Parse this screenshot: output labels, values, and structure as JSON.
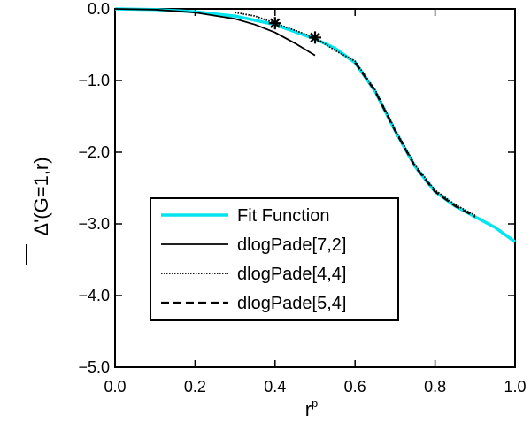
{
  "chart_data": {
    "type": "line",
    "xlabel": "r",
    "xlabel_sup": "p",
    "ylabel": "Δ'(G=1,r)",
    "xlim": [
      0.0,
      1.0
    ],
    "ylim": [
      -5.0,
      0.0
    ],
    "xticks": [
      "0.0",
      "0.2",
      "0.4",
      "0.6",
      "0.8",
      "1.0"
    ],
    "yticks": [
      "0.0",
      "−1.0",
      "−2.0",
      "−3.0",
      "−4.0",
      "−5.0"
    ],
    "legend_position": "lower-left",
    "series": [
      {
        "name": "Fit Function",
        "color": "#00e5ee",
        "style": "solid-thick",
        "points": [
          [
            0.0,
            0.0
          ],
          [
            0.1,
            -0.01
          ],
          [
            0.2,
            -0.04
          ],
          [
            0.3,
            -0.1
          ],
          [
            0.4,
            -0.22
          ],
          [
            0.5,
            -0.42
          ],
          [
            0.55,
            -0.55
          ],
          [
            0.6,
            -0.75
          ],
          [
            0.65,
            -1.15
          ],
          [
            0.7,
            -1.7
          ],
          [
            0.75,
            -2.2
          ],
          [
            0.8,
            -2.55
          ],
          [
            0.85,
            -2.75
          ],
          [
            0.9,
            -2.9
          ],
          [
            0.95,
            -3.05
          ],
          [
            1.0,
            -3.25
          ]
        ]
      },
      {
        "name": "dlogPade[7,2]",
        "color": "#000000",
        "style": "solid",
        "points": [
          [
            0.0,
            0.0
          ],
          [
            0.1,
            -0.01
          ],
          [
            0.2,
            -0.05
          ],
          [
            0.3,
            -0.14
          ],
          [
            0.35,
            -0.22
          ],
          [
            0.4,
            -0.33
          ],
          [
            0.45,
            -0.48
          ],
          [
            0.5,
            -0.65
          ]
        ]
      },
      {
        "name": "dlogPade[4,4]",
        "color": "#000000",
        "style": "dotted",
        "points": [
          [
            0.3,
            -0.05
          ],
          [
            0.35,
            -0.1
          ],
          [
            0.4,
            -0.2
          ],
          [
            0.45,
            -0.3
          ],
          [
            0.5,
            -0.4
          ],
          [
            0.55,
            -0.58
          ],
          [
            0.6,
            -0.73
          ],
          [
            0.65,
            -1.13
          ],
          [
            0.7,
            -1.68
          ],
          [
            0.75,
            -2.18
          ],
          [
            0.8,
            -2.53
          ],
          [
            0.85,
            -2.73
          ],
          [
            0.9,
            -2.88
          ]
        ]
      },
      {
        "name": "dlogPade[5,4]",
        "color": "#000000",
        "style": "dashed",
        "points": [
          [
            0.6,
            -0.75
          ],
          [
            0.65,
            -1.15
          ],
          [
            0.7,
            -1.7
          ],
          [
            0.75,
            -2.2
          ],
          [
            0.8,
            -2.55
          ],
          [
            0.85,
            -2.75
          ],
          [
            0.9,
            -2.9
          ]
        ]
      }
    ],
    "markers": [
      {
        "x": 0.4,
        "y": -0.2,
        "symbol": "*"
      },
      {
        "x": 0.5,
        "y": -0.4,
        "symbol": "*"
      }
    ]
  }
}
